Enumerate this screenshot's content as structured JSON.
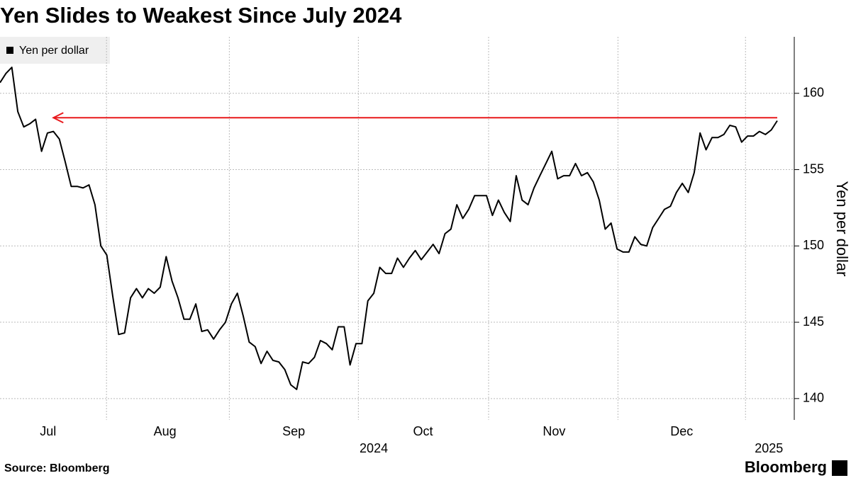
{
  "chart_data": {
    "type": "line",
    "title": "Yen Slides to Weakest Since July 2024",
    "legend": "top-left",
    "series": [
      {
        "name": "Yen per dollar",
        "color": "#000000",
        "values": [
          160.7,
          161.3,
          161.7,
          158.8,
          157.8,
          158.0,
          158.3,
          156.2,
          157.4,
          157.5,
          157.0,
          155.5,
          153.9,
          153.9,
          153.8,
          154.0,
          152.7,
          150.0,
          149.4,
          146.7,
          144.2,
          144.3,
          146.6,
          147.2,
          146.6,
          147.2,
          146.9,
          147.3,
          149.3,
          147.7,
          146.6,
          145.2,
          145.2,
          146.2,
          144.4,
          144.5,
          143.9,
          144.5,
          145.0,
          146.2,
          146.9,
          145.4,
          143.7,
          143.4,
          142.3,
          143.1,
          142.5,
          142.4,
          141.9,
          140.9,
          140.6,
          142.4,
          142.3,
          142.7,
          143.8,
          143.6,
          143.2,
          144.7,
          144.7,
          142.2,
          143.6,
          143.6,
          146.4,
          146.9,
          148.6,
          148.2,
          148.2,
          149.2,
          148.6,
          149.2,
          149.7,
          149.1,
          149.6,
          150.1,
          149.5,
          150.8,
          151.1,
          152.7,
          151.8,
          152.4,
          153.3,
          153.3,
          153.3,
          152.0,
          153.0,
          152.2,
          151.6,
          154.6,
          153.0,
          152.7,
          153.8,
          154.6,
          155.4,
          156.2,
          154.4,
          154.6,
          154.6,
          155.4,
          154.6,
          154.8,
          154.2,
          153.0,
          151.1,
          151.5,
          149.8,
          149.6,
          149.6,
          150.6,
          150.1,
          150.0,
          151.2,
          151.8,
          152.4,
          152.6,
          153.5,
          154.1,
          153.5,
          154.8,
          157.4,
          156.3,
          157.1,
          157.1,
          157.3,
          157.9,
          157.8,
          156.8,
          157.2,
          157.2,
          157.5,
          157.3,
          157.6,
          158.2
        ]
      }
    ],
    "xticks": [
      {
        "value": 8.1,
        "label": "Jul"
      },
      {
        "value": 27.8,
        "label": "Aug"
      },
      {
        "value": 49.5,
        "label": "Sep"
      },
      {
        "value": 71.3,
        "label": "Oct"
      },
      {
        "value": 93.4,
        "label": "Nov"
      },
      {
        "value": 114.9,
        "label": "Dec"
      }
    ],
    "year_ticks": [
      {
        "value": 63.0,
        "label": "2024"
      },
      {
        "value": 129.6,
        "label": "2025"
      }
    ],
    "ylabel": "Yen per dollar",
    "ylim": [
      138.6,
      163.7
    ],
    "yticks": [
      140,
      145,
      150,
      155,
      160
    ],
    "grid": true,
    "reference_line": {
      "value": 158.4,
      "start": 9,
      "color": "#e8191c"
    },
    "source": "Source: Bloomberg",
    "brand": "Bloomberg"
  }
}
